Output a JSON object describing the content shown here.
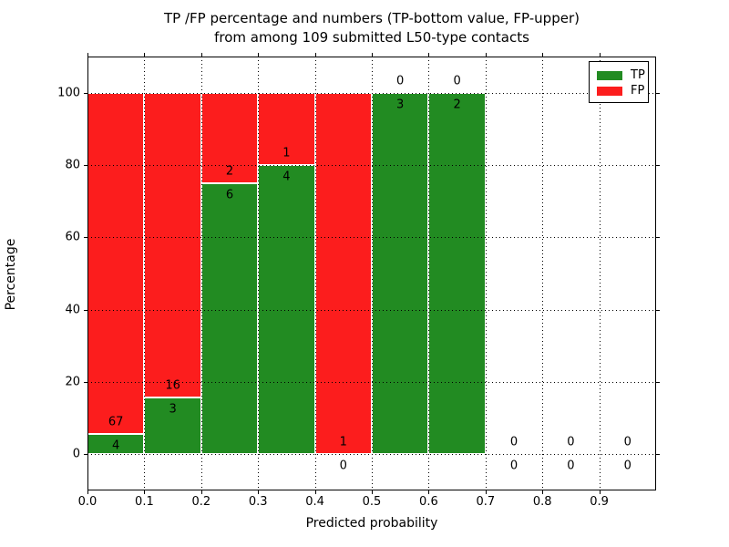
{
  "chart_data": {
    "type": "bar",
    "stacked": true,
    "title_line1": "TP /FP percentage and numbers (TP-bottom value, FP-upper)",
    "title_line2": "from among 109 submitted L50-type contacts",
    "xlabel": "Predicted probability",
    "ylabel": "Percentage",
    "xlim": [
      0.0,
      1.0
    ],
    "ylim": [
      -10,
      110
    ],
    "grid": true,
    "legend_position": "upper right",
    "x_ticks": [
      {
        "v": 0.0,
        "label": "0.0"
      },
      {
        "v": 0.1,
        "label": "0.1"
      },
      {
        "v": 0.2,
        "label": "0.2"
      },
      {
        "v": 0.3,
        "label": "0.3"
      },
      {
        "v": 0.4,
        "label": "0.4"
      },
      {
        "v": 0.5,
        "label": "0.5"
      },
      {
        "v": 0.6,
        "label": "0.6"
      },
      {
        "v": 0.7,
        "label": "0.7"
      },
      {
        "v": 0.8,
        "label": "0.8"
      },
      {
        "v": 0.9,
        "label": "0.9"
      }
    ],
    "y_ticks": [
      {
        "v": 0,
        "label": "0"
      },
      {
        "v": 20,
        "label": "20"
      },
      {
        "v": 40,
        "label": "40"
      },
      {
        "v": 60,
        "label": "60"
      },
      {
        "v": 80,
        "label": "80"
      },
      {
        "v": 100,
        "label": "100"
      }
    ],
    "bins": [
      {
        "x0": 0.0,
        "x1": 0.1,
        "tp_count": 4,
        "fp_count": 67,
        "tp_pct": 5.63,
        "fp_pct": 94.37
      },
      {
        "x0": 0.1,
        "x1": 0.2,
        "tp_count": 3,
        "fp_count": 16,
        "tp_pct": 15.79,
        "fp_pct": 84.21
      },
      {
        "x0": 0.2,
        "x1": 0.3,
        "tp_count": 6,
        "fp_count": 2,
        "tp_pct": 75.0,
        "fp_pct": 25.0
      },
      {
        "x0": 0.3,
        "x1": 0.4,
        "tp_count": 4,
        "fp_count": 1,
        "tp_pct": 80.0,
        "fp_pct": 20.0
      },
      {
        "x0": 0.4,
        "x1": 0.5,
        "tp_count": 0,
        "fp_count": 1,
        "tp_pct": 0.0,
        "fp_pct": 100.0
      },
      {
        "x0": 0.5,
        "x1": 0.6,
        "tp_count": 3,
        "fp_count": 0,
        "tp_pct": 100.0,
        "fp_pct": 0.0
      },
      {
        "x0": 0.6,
        "x1": 0.7,
        "tp_count": 2,
        "fp_count": 0,
        "tp_pct": 100.0,
        "fp_pct": 0.0
      },
      {
        "x0": 0.7,
        "x1": 0.8,
        "tp_count": 0,
        "fp_count": 0,
        "tp_pct": 0.0,
        "fp_pct": 0.0
      },
      {
        "x0": 0.8,
        "x1": 0.9,
        "tp_count": 0,
        "fp_count": 0,
        "tp_pct": 0.0,
        "fp_pct": 0.0
      },
      {
        "x0": 0.9,
        "x1": 1.0,
        "tp_count": 0,
        "fp_count": 0,
        "tp_pct": 0.0,
        "fp_pct": 0.0
      }
    ],
    "legend": [
      {
        "label": "TP",
        "color": "#228b22"
      },
      {
        "label": "FP",
        "color": "#fc1d1d"
      }
    ],
    "colors": {
      "tp": "#228b22",
      "fp": "#fc1d1d",
      "grid": "#000000",
      "bar_edge": "#ffffff"
    }
  }
}
